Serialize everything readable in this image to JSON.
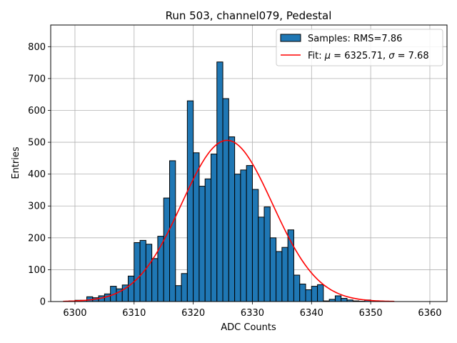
{
  "chart_data": {
    "type": "bar",
    "title": "Run 503, channel079, Pedestal",
    "xlabel": "ADC Counts",
    "ylabel": "Entries",
    "xlim": [
      6295.9,
      6362.9
    ],
    "ylim": [
      0,
      868
    ],
    "xticks": [
      6300,
      6310,
      6320,
      6330,
      6340,
      6350,
      6360
    ],
    "yticks": [
      0,
      100,
      200,
      300,
      400,
      500,
      600,
      700,
      800
    ],
    "grid": true,
    "legend_position": "top-right",
    "bins": {
      "start": 6298,
      "width": 1,
      "values": [
        0,
        2,
        4,
        4,
        15,
        12,
        18,
        24,
        48,
        40,
        52,
        80,
        185,
        192,
        180,
        135,
        205,
        325,
        442,
        50,
        88,
        630,
        467,
        362,
        385,
        463,
        752,
        637,
        517,
        400,
        413,
        427,
        352,
        265,
        297,
        200,
        157,
        170,
        225,
        83,
        55,
        37,
        48,
        53,
        2,
        7,
        18,
        10,
        5,
        2,
        1,
        5,
        0,
        0,
        0
      ]
    },
    "fit": {
      "mu": 6325.71,
      "sigma": 7.68,
      "amplitude": 506,
      "x_range": [
        6298,
        6354
      ]
    },
    "series": [
      {
        "name": "Samples: RMS=7.86",
        "kind": "histogram",
        "color": "#1f77b4",
        "edge_color": "#000000"
      },
      {
        "name": "Fit: μ = 6325.71, σ = 7.68",
        "kind": "line",
        "color": "#ff0000"
      }
    ],
    "legend": {
      "samples_prefix": "Samples: RMS=7.86",
      "fit_prefix": "Fit: ",
      "mu_symbol": "μ",
      "mu_text": " = 6325.71, ",
      "sigma_symbol": "σ",
      "sigma_text": " = 7.68"
    }
  }
}
